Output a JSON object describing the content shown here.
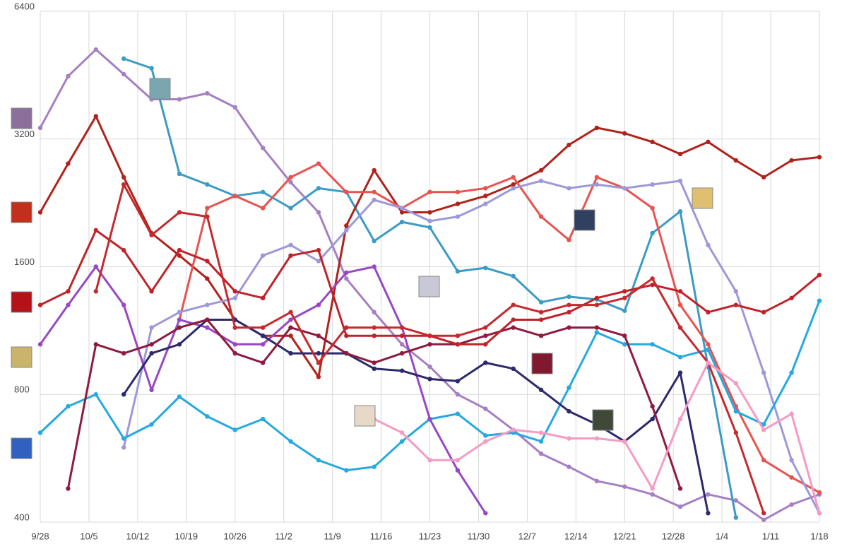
{
  "chart_data": {
    "type": "line",
    "log_scale": true,
    "grid": true,
    "x": [
      0,
      4,
      8,
      12,
      16,
      20,
      24,
      28,
      32,
      36,
      40,
      44,
      48,
      52,
      56,
      60,
      64,
      68,
      72,
      76,
      80,
      84,
      88,
      92,
      96,
      100,
      104,
      108,
      112
    ],
    "xlim": [
      0,
      112
    ],
    "xticks": [
      {
        "value": 0,
        "label": "9/28"
      },
      {
        "value": 7,
        "label": "10/5"
      },
      {
        "value": 14,
        "label": "10/12"
      },
      {
        "value": 21,
        "label": "10/19"
      },
      {
        "value": 28,
        "label": "10/26"
      },
      {
        "value": 35,
        "label": "11/2"
      },
      {
        "value": 42,
        "label": "11/9"
      },
      {
        "value": 49,
        "label": "11/16"
      },
      {
        "value": 56,
        "label": "11/23"
      },
      {
        "value": 63,
        "label": "11/30"
      },
      {
        "value": 70,
        "label": "12/7"
      },
      {
        "value": 77,
        "label": "12/14"
      },
      {
        "value": 84,
        "label": "12/21"
      },
      {
        "value": 91,
        "label": "12/28"
      },
      {
        "value": 98,
        "label": "1/4"
      },
      {
        "value": 105,
        "label": "1/11"
      },
      {
        "value": 112,
        "label": "1/18"
      }
    ],
    "ylim": [
      400,
      6400
    ],
    "yticks": [
      400,
      800,
      1600,
      3200,
      6400
    ],
    "series": [
      {
        "color": "#a67fc2",
        "values": [
          3400,
          4500,
          5200,
          4550,
          3970,
          3970,
          4100,
          3800,
          3050,
          2530,
          2150,
          1500,
          1250,
          1050,
          930,
          800,
          740,
          660,
          580,
          540,
          500,
          485,
          465,
          435,
          465,
          450,
          405,
          440,
          465
        ]
      },
      {
        "color": "#3b9bc4",
        "values": [
          null,
          null,
          null,
          4950,
          4700,
          2650,
          2500,
          2350,
          2400,
          2200,
          2450,
          2400,
          1840,
          2040,
          1980,
          1560,
          1590,
          1520,
          1320,
          1360,
          1340,
          1260,
          1920,
          2160,
          930,
          410,
          null,
          null,
          null
        ]
      },
      {
        "color": "#b0221a",
        "values": [
          2150,
          2800,
          3620,
          2600,
          1920,
          1700,
          1500,
          1200,
          1100,
          1100,
          880,
          2000,
          2700,
          2150,
          2150,
          2250,
          2350,
          2500,
          2700,
          3100,
          3400,
          3300,
          3150,
          2950,
          3150,
          2850,
          2600,
          2850,
          2900
        ]
      },
      {
        "color": "#e8534f",
        "values": [
          null,
          null,
          null,
          null,
          null,
          1200,
          2200,
          2350,
          2200,
          2600,
          2800,
          2400,
          2400,
          2200,
          2400,
          2400,
          2450,
          2600,
          2100,
          1850,
          2600,
          2450,
          2200,
          1300,
          1050,
          750,
          560,
          510,
          470
        ]
      },
      {
        "color": "#9d98d9",
        "values": [
          null,
          null,
          null,
          600,
          1150,
          1250,
          1300,
          1350,
          1700,
          1800,
          1650,
          1950,
          2300,
          2200,
          2050,
          2100,
          2250,
          2450,
          2550,
          2450,
          2500,
          2450,
          2500,
          2550,
          1800,
          1400,
          900,
          560,
          420
        ]
      },
      {
        "color": "#25a9e0",
        "values": [
          650,
          750,
          800,
          630,
          680,
          790,
          710,
          660,
          700,
          620,
          560,
          530,
          540,
          620,
          700,
          720,
          640,
          650,
          620,
          830,
          1120,
          1050,
          1050,
          980,
          1020,
          730,
          680,
          900,
          1330
        ]
      },
      {
        "color": "#9848c2",
        "values": [
          1050,
          1300,
          1600,
          1300,
          820,
          1200,
          1150,
          1050,
          1050,
          1200,
          1300,
          1550,
          1600,
          1150,
          700,
          530,
          420,
          null,
          null,
          null,
          null,
          null,
          null,
          null,
          null,
          null,
          null,
          null,
          null
        ]
      },
      {
        "color": "#2c2a6b",
        "values": [
          null,
          null,
          null,
          800,
          1000,
          1050,
          1200,
          1200,
          1100,
          1000,
          1000,
          1000,
          920,
          910,
          870,
          860,
          950,
          920,
          820,
          730,
          680,
          620,
          700,
          900,
          420,
          null,
          null,
          null,
          null
        ]
      },
      {
        "color": "#8e1b3e",
        "values": [
          null,
          480,
          1050,
          1000,
          1050,
          1150,
          1200,
          1000,
          950,
          1150,
          1100,
          1000,
          950,
          1000,
          1050,
          1050,
          1100,
          1150,
          1100,
          1150,
          1150,
          1100,
          750,
          480,
          null,
          null,
          null,
          null,
          null
        ]
      },
      {
        "color": "#bf2329",
        "values": [
          1300,
          1400,
          1950,
          1750,
          1400,
          1750,
          1650,
          1400,
          1350,
          1700,
          1750,
          1100,
          1100,
          1100,
          1100,
          1050,
          1050,
          1200,
          1200,
          1250,
          1350,
          1400,
          1450,
          1400,
          1250,
          1300,
          1250,
          1350,
          1530
        ]
      },
      {
        "color": "#c52a2e",
        "values": [
          null,
          null,
          1400,
          2500,
          1900,
          2150,
          2100,
          1150,
          1150,
          1250,
          950,
          1150,
          1150,
          1150,
          1100,
          1100,
          1150,
          1300,
          1250,
          1300,
          1300,
          1350,
          1500,
          1150,
          950,
          650,
          420,
          null,
          null
        ]
      },
      {
        "color": "#f59bc4",
        "values": [
          null,
          null,
          null,
          null,
          null,
          null,
          null,
          null,
          null,
          null,
          null,
          null,
          700,
          650,
          560,
          560,
          620,
          660,
          650,
          630,
          630,
          620,
          480,
          700,
          950,
          850,
          660,
          720,
          420
        ]
      }
    ]
  }
}
